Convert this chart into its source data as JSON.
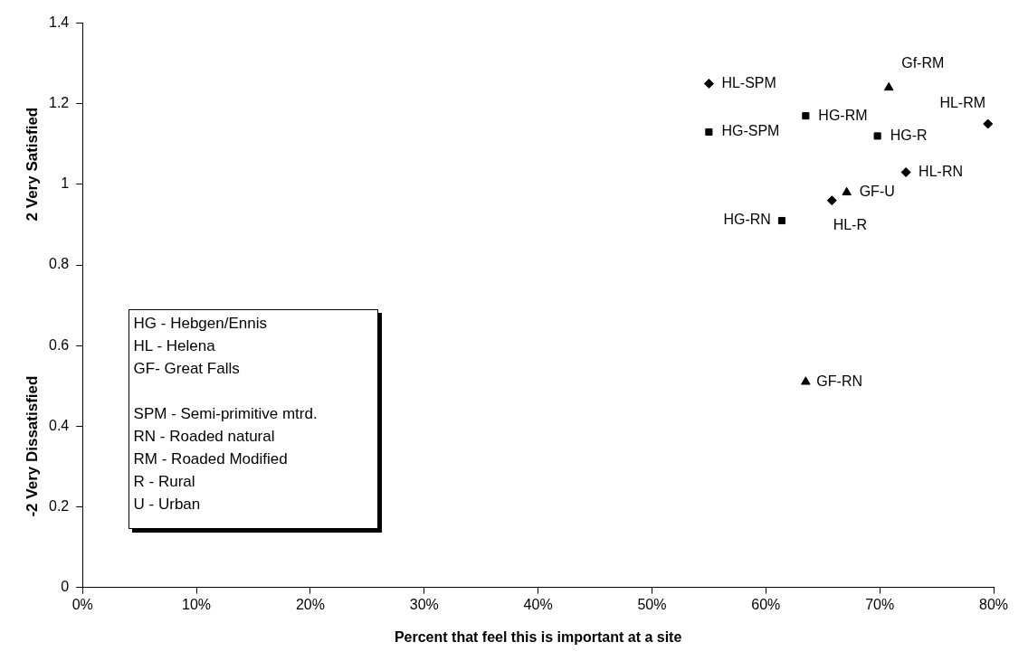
{
  "chart_data": {
    "type": "scatter",
    "xlabel": "Percent that feel this is important at a site",
    "ylabel": "2 Very Satisfied",
    "xlim": [
      0,
      80
    ],
    "ylim": [
      0,
      1.4
    ],
    "xticks": [
      {
        "value": 0,
        "label": "0%"
      },
      {
        "value": 10,
        "label": "10%"
      },
      {
        "value": 20,
        "label": "20%"
      },
      {
        "value": 30,
        "label": "30%"
      },
      {
        "value": 40,
        "label": "40%"
      },
      {
        "value": 50,
        "label": "50%"
      },
      {
        "value": 60,
        "label": "60%"
      },
      {
        "value": 70,
        "label": "70%"
      },
      {
        "value": 80,
        "label": "80%"
      }
    ],
    "yticks": [
      0,
      0.2,
      0.4,
      0.6,
      0.8,
      1,
      1.2,
      1.4
    ],
    "grid": false,
    "legend": false,
    "series": [
      {
        "color": "#000000",
        "marker": "square",
        "x": [
          55.0,
          63.5,
          69.8,
          61.4
        ],
        "values": [
          1.13,
          1.17,
          1.12,
          0.91
        ]
      },
      {
        "color": "#000000",
        "marker": "diamond",
        "x": [
          55.0,
          79.5,
          72.3,
          65.8
        ],
        "values": [
          1.25,
          1.15,
          1.03,
          0.96
        ]
      },
      {
        "color": "#000000",
        "marker": "triangle",
        "x": [
          70.8,
          67.1,
          63.5
        ],
        "values": [
          1.24,
          0.98,
          0.51
        ]
      }
    ],
    "annotations": [
      "-2 Very Dissatisfied",
      "HG - Hebgen/Ennis",
      "HL - Helena",
      "GF- Great Falls",
      "SPM - Semi-primitive mtrd.",
      "RN - Roaded natural",
      "RM -  Roaded Modified",
      "R - Rural",
      "U - Urban",
      {
        "text": "HL-SPM",
        "x": 55.0,
        "y": 1.25
      },
      {
        "text": "HG-SPM",
        "x": 55.0,
        "y": 1.13
      },
      {
        "text": "HG-RM",
        "x": 63.5,
        "y": 1.17
      },
      {
        "text": "Gf-RM",
        "x": 70.8,
        "y": 1.24
      },
      {
        "text": "HL-RM",
        "x": 79.5,
        "y": 1.15
      },
      {
        "text": "HG-R",
        "x": 69.8,
        "y": 1.12
      },
      {
        "text": "HL-RN",
        "x": 72.3,
        "y": 1.03
      },
      {
        "text": "GF-U",
        "x": 67.1,
        "y": 0.98
      },
      {
        "text": "HL-R",
        "x": 65.8,
        "y": 0.96
      },
      {
        "text": "HG-RN",
        "x": 61.4,
        "y": 0.91
      },
      {
        "text": "GF-RN",
        "x": 63.5,
        "y": 0.51
      }
    ]
  }
}
